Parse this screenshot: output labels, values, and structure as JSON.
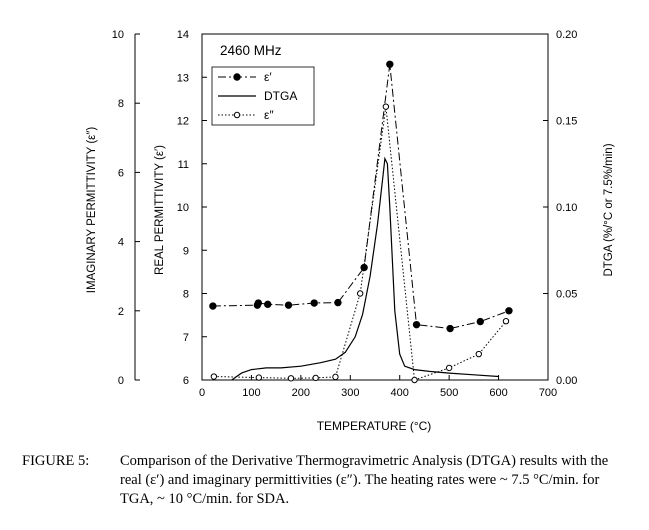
{
  "chart_data": {
    "type": "line",
    "freq_label": "2460 MHz",
    "xlabel": "TEMPERATURE (°C)",
    "y_left_outer_label": "IMAGINARY PERMITTIVITY (ε″)",
    "y_left_inner_label": "REAL PERMITTIVITY (ε′)",
    "y_right_label": "DTGA (%/°C or 7.5%/min)",
    "xlim": [
      0,
      700
    ],
    "x_ticks": [
      "0",
      "100",
      "200",
      "300",
      "400",
      "500",
      "600",
      "700"
    ],
    "y_left_outer_lim": [
      0,
      10
    ],
    "y_left_outer_ticks": [
      "0",
      "2",
      "4",
      "6",
      "8",
      "10"
    ],
    "y_left_inner_lim": [
      6,
      14
    ],
    "y_left_inner_ticks": [
      "6",
      "7",
      "8",
      "9",
      "10",
      "11",
      "12",
      "13",
      "14"
    ],
    "y_right_lim": [
      0,
      0.2
    ],
    "y_right_ticks": [
      "0.00",
      "0.05",
      "0.10",
      "0.15",
      "0.20"
    ],
    "legend": [
      "ε′",
      "DTGA",
      "ε″"
    ],
    "legend_position": "top-left",
    "grid": false,
    "series": [
      {
        "name": "ε′",
        "axis": "real",
        "style": "dash-dot-filled",
        "x": [
          22,
          112,
          114,
          133,
          175,
          227,
          275,
          328,
          380,
          434,
          502,
          563,
          621
        ],
        "y": [
          7.71,
          7.73,
          7.78,
          7.75,
          7.73,
          7.78,
          7.79,
          8.6,
          13.3,
          7.28,
          7.19,
          7.35,
          7.6
        ]
      },
      {
        "name": "DTGA",
        "axis": "right",
        "style": "solid",
        "x": [
          60,
          80,
          100,
          130,
          160,
          200,
          240,
          270,
          290,
          310,
          325,
          340,
          355,
          365,
          370,
          375,
          380,
          385,
          390,
          400,
          410,
          430,
          460,
          500,
          550,
          600
        ],
        "y": [
          0.0,
          0.004,
          0.006,
          0.007,
          0.007,
          0.008,
          0.01,
          0.012,
          0.016,
          0.025,
          0.038,
          0.06,
          0.09,
          0.115,
          0.128,
          0.125,
          0.1,
          0.07,
          0.04,
          0.015,
          0.008,
          0.006,
          0.005,
          0.004,
          0.003,
          0.002
        ]
      },
      {
        "name": "ε″",
        "axis": "imag",
        "style": "dotted-open",
        "x": [
          24,
          115,
          180,
          230,
          270,
          320,
          372,
          430,
          500,
          560,
          615
        ],
        "y": [
          0.1,
          0.07,
          0.05,
          0.06,
          0.09,
          2.5,
          7.9,
          0.0,
          0.35,
          0.75,
          1.7
        ]
      }
    ]
  },
  "caption": {
    "label": "FIGURE 5:",
    "text": "Comparison of the Derivative Thermogravimetric Analysis (DTGA) results with the real (ε′) and imaginary permittivities (ε″). The heating rates were ~ 7.5 °C/min. for TGA, ~ 10 °C/min. for SDA."
  }
}
